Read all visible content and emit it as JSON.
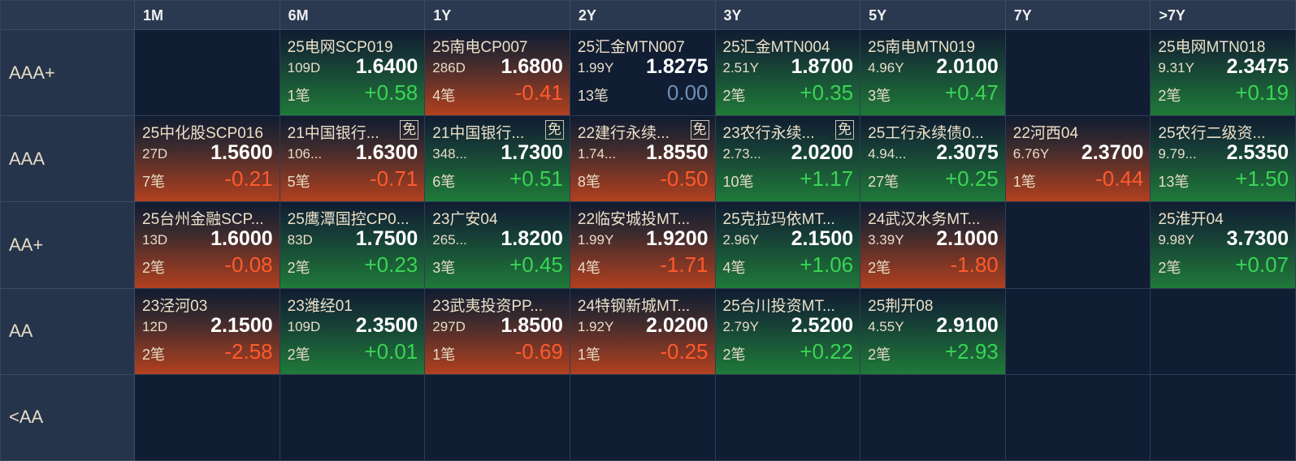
{
  "grid": {
    "columns": [
      "1M",
      "6M",
      "1Y",
      "2Y",
      "3Y",
      "5Y",
      "7Y",
      ">7Y"
    ],
    "rows": [
      {
        "label": "AAA+",
        "cells": [
          null,
          {
            "name": "25电网SCP019",
            "term": "109D",
            "yield": "1.6400",
            "count": "1笔",
            "change": "+0.58"
          },
          {
            "name": "25南电CP007",
            "term": "286D",
            "yield": "1.6800",
            "count": "4笔",
            "change": "-0.41"
          },
          {
            "name": "25汇金MTN007",
            "term": "1.99Y",
            "yield": "1.8275",
            "count": "13笔",
            "change": "0.00"
          },
          {
            "name": "25汇金MTN004",
            "term": "2.51Y",
            "yield": "1.8700",
            "count": "2笔",
            "change": "+0.35"
          },
          {
            "name": "25南电MTN019",
            "term": "4.96Y",
            "yield": "2.0100",
            "count": "3笔",
            "change": "+0.47"
          },
          null,
          {
            "name": "25电网MTN018",
            "term": "9.31Y",
            "yield": "2.3475",
            "count": "2笔",
            "change": "+0.19"
          }
        ]
      },
      {
        "label": "AAA",
        "cells": [
          {
            "name": "25中化股SCP016",
            "term": "27D",
            "yield": "1.5600",
            "count": "7笔",
            "change": "-0.21"
          },
          {
            "name": "21中国银行...",
            "tag": "免",
            "term": "106...",
            "yield": "1.6300",
            "count": "5笔",
            "change": "-0.71"
          },
          {
            "name": "21中国银行...",
            "tag": "免",
            "term": "348...",
            "yield": "1.7300",
            "count": "6笔",
            "change": "+0.51"
          },
          {
            "name": "22建行永续...",
            "tag": "免",
            "term": "1.74...",
            "yield": "1.8550",
            "count": "8笔",
            "change": "-0.50"
          },
          {
            "name": "23农行永续...",
            "tag": "免",
            "term": "2.73...",
            "yield": "2.0200",
            "count": "10笔",
            "change": "+1.17"
          },
          {
            "name": "25工行永续债0...",
            "term": "4.94...",
            "yield": "2.3075",
            "count": "27笔",
            "change": "+0.25"
          },
          {
            "name": "22河西04",
            "term": "6.76Y",
            "yield": "2.3700",
            "count": "1笔",
            "change": "-0.44"
          },
          {
            "name": "25农行二级资...",
            "term": "9.79...",
            "yield": "2.5350",
            "count": "13笔",
            "change": "+1.50"
          }
        ]
      },
      {
        "label": "AA+",
        "cells": [
          {
            "name": "25台州金融SCP...",
            "term": "13D",
            "yield": "1.6000",
            "count": "2笔",
            "change": "-0.08"
          },
          {
            "name": "25鹰潭国控CP0...",
            "term": "83D",
            "yield": "1.7500",
            "count": "2笔",
            "change": "+0.23"
          },
          {
            "name": "23广安04",
            "term": "265...",
            "yield": "1.8200",
            "count": "3笔",
            "change": "+0.45"
          },
          {
            "name": "22临安城投MT...",
            "term": "1.99Y",
            "yield": "1.9200",
            "count": "4笔",
            "change": "-1.71"
          },
          {
            "name": "25克拉玛依MT...",
            "term": "2.96Y",
            "yield": "2.1500",
            "count": "4笔",
            "change": "+1.06"
          },
          {
            "name": "24武汉水务MT...",
            "term": "3.39Y",
            "yield": "2.1000",
            "count": "2笔",
            "change": "-1.80"
          },
          null,
          {
            "name": "25淮开04",
            "term": "9.98Y",
            "yield": "3.7300",
            "count": "2笔",
            "change": "+0.07"
          }
        ]
      },
      {
        "label": "AA",
        "cells": [
          {
            "name": "23泾河03",
            "term": "12D",
            "yield": "2.1500",
            "count": "2笔",
            "change": "-2.58"
          },
          {
            "name": "23潍经01",
            "term": "109D",
            "yield": "2.3500",
            "count": "2笔",
            "change": "+0.01"
          },
          {
            "name": "23武夷投资PP...",
            "term": "297D",
            "yield": "1.8500",
            "count": "1笔",
            "change": "-0.69"
          },
          {
            "name": "24特钢新城MT...",
            "term": "1.92Y",
            "yield": "2.0200",
            "count": "1笔",
            "change": "-0.25"
          },
          {
            "name": "25合川投资MT...",
            "term": "2.79Y",
            "yield": "2.5200",
            "count": "2笔",
            "change": "+0.22"
          },
          {
            "name": "25荆开08",
            "term": "4.55Y",
            "yield": "2.9100",
            "count": "2笔",
            "change": "+2.93"
          },
          null,
          null
        ]
      },
      {
        "label": "<AA",
        "cells": [
          null,
          null,
          null,
          null,
          null,
          null,
          null,
          null
        ]
      }
    ]
  }
}
